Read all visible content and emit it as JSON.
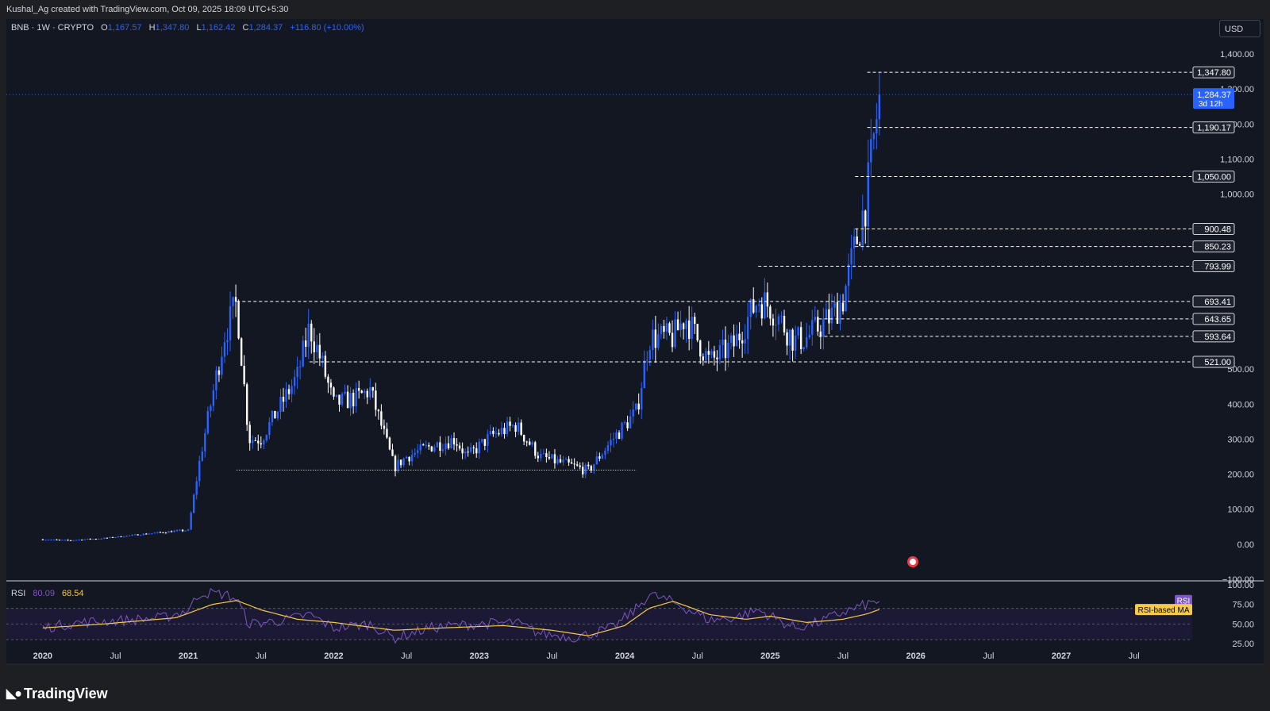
{
  "header": {
    "credit": "Kushal_Ag created with TradingView.com, Oct 09, 2025 18:09 UTC+5:30"
  },
  "legend": {
    "symbol": "BNB · 1W · CRYPTO",
    "o_label": "O",
    "o": "1,167.57",
    "h_label": "H",
    "h": "1,347.80",
    "l_label": "L",
    "l": "1,162.42",
    "c_label": "C",
    "c": "1,284.37",
    "change": "+116.80 (+10.00%)"
  },
  "currency_button": "USD",
  "colors": {
    "background": "#131722",
    "bull": "#2962ff",
    "bear": "#ffffff",
    "rsi": "#7e57c2",
    "rsi_ma": "#f7c948",
    "price_tag": "#2962ff"
  },
  "chart_data": {
    "type": "candlestick",
    "symbol": "BNB",
    "timeframe": "1W",
    "ylim": [
      -100,
      1450
    ],
    "y_ticks": [
      "1,400.00",
      "1,300.00",
      "1,200.00",
      "1,100.00",
      "1,000.00",
      "500.00",
      "400.00",
      "300.00",
      "200.00",
      "100.00",
      "0.00",
      "−100.00"
    ],
    "y_tick_values": [
      1400,
      1300,
      1200,
      1100,
      1000,
      500,
      400,
      300,
      200,
      100,
      0,
      -100
    ],
    "x_ticks": [
      "2020",
      "Jul",
      "2021",
      "Jul",
      "2022",
      "Jul",
      "2023",
      "Jul",
      "2024",
      "Jul",
      "2025",
      "Jul",
      "2026",
      "Jul",
      "2027",
      "Jul"
    ],
    "x_tick_dates": [
      "2020-01",
      "2020-07",
      "2021-01",
      "2021-07",
      "2022-01",
      "2022-07",
      "2023-01",
      "2023-07",
      "2024-01",
      "2024-07",
      "2025-01",
      "2025-07",
      "2026-01",
      "2026-07",
      "2027-01",
      "2027-07"
    ],
    "levels": [
      {
        "label": "1,347.80",
        "value": 1347.8,
        "from": "2025-09"
      },
      {
        "label": "1,190.17",
        "value": 1190.17,
        "from": "2025-09"
      },
      {
        "label": "1,050.00",
        "value": 1050.0,
        "from": "2025-08"
      },
      {
        "label": "900.48",
        "value": 900.48,
        "from": "2025-08"
      },
      {
        "label": "850.23",
        "value": 850.23,
        "from": "2025-08"
      },
      {
        "label": "793.99",
        "value": 793.99,
        "from": "2024-12"
      },
      {
        "label": "693.41",
        "value": 693.41,
        "from": "2021-05"
      },
      {
        "label": "643.65",
        "value": 643.65,
        "from": "2025-05"
      },
      {
        "label": "593.64",
        "value": 593.64,
        "from": "2025-05"
      },
      {
        "label": "521.00",
        "value": 521.0,
        "from": "2021-11"
      }
    ],
    "support_line": {
      "value": 212,
      "from": "2021-05",
      "to": "2024-02"
    },
    "last_price": {
      "label": "1,284.37",
      "value": 1284.37,
      "countdown": "3d 12h"
    },
    "price_path": [
      [
        "2020-01",
        14
      ],
      [
        "2020-03",
        11
      ],
      [
        "2020-06",
        17
      ],
      [
        "2020-09",
        28
      ],
      [
        "2020-12",
        38
      ],
      [
        "2021-01",
        40
      ],
      [
        "2021-02",
        250
      ],
      [
        "2021-04",
        600
      ],
      [
        "2021-05",
        690
      ],
      [
        "2021-06",
        300
      ],
      [
        "2021-07",
        300
      ],
      [
        "2021-09",
        420
      ],
      [
        "2021-10",
        480
      ],
      [
        "2021-11",
        620
      ],
      [
        "2021-12",
        520
      ],
      [
        "2022-01",
        400
      ],
      [
        "2022-03",
        420
      ],
      [
        "2022-04",
        440
      ],
      [
        "2022-06",
        220
      ],
      [
        "2022-07",
        250
      ],
      [
        "2022-09",
        280
      ],
      [
        "2022-11",
        300
      ],
      [
        "2022-12",
        250
      ],
      [
        "2023-02",
        310
      ],
      [
        "2023-04",
        340
      ],
      [
        "2023-06",
        250
      ],
      [
        "2023-08",
        230
      ],
      [
        "2023-10",
        210
      ],
      [
        "2023-12",
        300
      ],
      [
        "2024-02",
        380
      ],
      [
        "2024-03",
        590
      ],
      [
        "2024-05",
        590
      ],
      [
        "2024-06",
        650
      ],
      [
        "2024-08",
        520
      ],
      [
        "2024-10",
        570
      ],
      [
        "2024-12",
        700
      ],
      [
        "2025-01",
        680
      ],
      [
        "2025-03",
        580
      ],
      [
        "2025-04",
        590
      ],
      [
        "2025-06",
        650
      ],
      [
        "2025-07",
        700
      ],
      [
        "2025-08",
        850
      ],
      [
        "2025-09",
        1000
      ],
      [
        "2025-10",
        1284
      ]
    ]
  },
  "rsi_panel": {
    "title": "RSI",
    "rsi_value": "80.09",
    "ma_value": "68.54",
    "y_ticks": [
      "100.00",
      "75.00",
      "50.00",
      "25.00"
    ],
    "y_tick_values": [
      100,
      75,
      50,
      25
    ],
    "ylim": [
      20,
      102
    ],
    "band": [
      30,
      70
    ],
    "rsi_tag": "RSI",
    "ma_tag": "RSI-based MA",
    "rsi_path": [
      [
        "2020-01",
        45
      ],
      [
        "2020-04",
        52
      ],
      [
        "2020-08",
        55
      ],
      [
        "2020-11",
        58
      ],
      [
        "2021-01",
        68
      ],
      [
        "2021-02",
        90
      ],
      [
        "2021-04",
        88
      ],
      [
        "2021-05",
        82
      ],
      [
        "2021-06",
        50
      ],
      [
        "2021-09",
        55
      ],
      [
        "2021-11",
        62
      ],
      [
        "2022-01",
        45
      ],
      [
        "2022-04",
        50
      ],
      [
        "2022-06",
        32
      ],
      [
        "2022-09",
        45
      ],
      [
        "2022-11",
        48
      ],
      [
        "2023-01",
        50
      ],
      [
        "2023-04",
        52
      ],
      [
        "2023-06",
        38
      ],
      [
        "2023-09",
        33
      ],
      [
        "2023-12",
        45
      ],
      [
        "2024-02",
        70
      ],
      [
        "2024-03",
        88
      ],
      [
        "2024-05",
        78
      ],
      [
        "2024-08",
        55
      ],
      [
        "2024-10",
        58
      ],
      [
        "2024-12",
        68
      ],
      [
        "2025-03",
        45
      ],
      [
        "2025-05",
        52
      ],
      [
        "2025-07",
        65
      ],
      [
        "2025-09",
        75
      ],
      [
        "2025-10",
        80
      ]
    ],
    "ma_path": [
      [
        "2020-01",
        45
      ],
      [
        "2020-06",
        50
      ],
      [
        "2020-12",
        58
      ],
      [
        "2021-03",
        75
      ],
      [
        "2021-05",
        80
      ],
      [
        "2021-07",
        68
      ],
      [
        "2021-10",
        56
      ],
      [
        "2022-01",
        52
      ],
      [
        "2022-06",
        42
      ],
      [
        "2022-10",
        45
      ],
      [
        "2023-03",
        48
      ],
      [
        "2023-07",
        42
      ],
      [
        "2023-10",
        35
      ],
      [
        "2024-01",
        48
      ],
      [
        "2024-03",
        70
      ],
      [
        "2024-05",
        79
      ],
      [
        "2024-08",
        62
      ],
      [
        "2024-11",
        56
      ],
      [
        "2025-01",
        60
      ],
      [
        "2025-04",
        52
      ],
      [
        "2025-07",
        56
      ],
      [
        "2025-09",
        63
      ],
      [
        "2025-10",
        68.5
      ]
    ]
  },
  "footer": {
    "brand": "TradingView"
  }
}
